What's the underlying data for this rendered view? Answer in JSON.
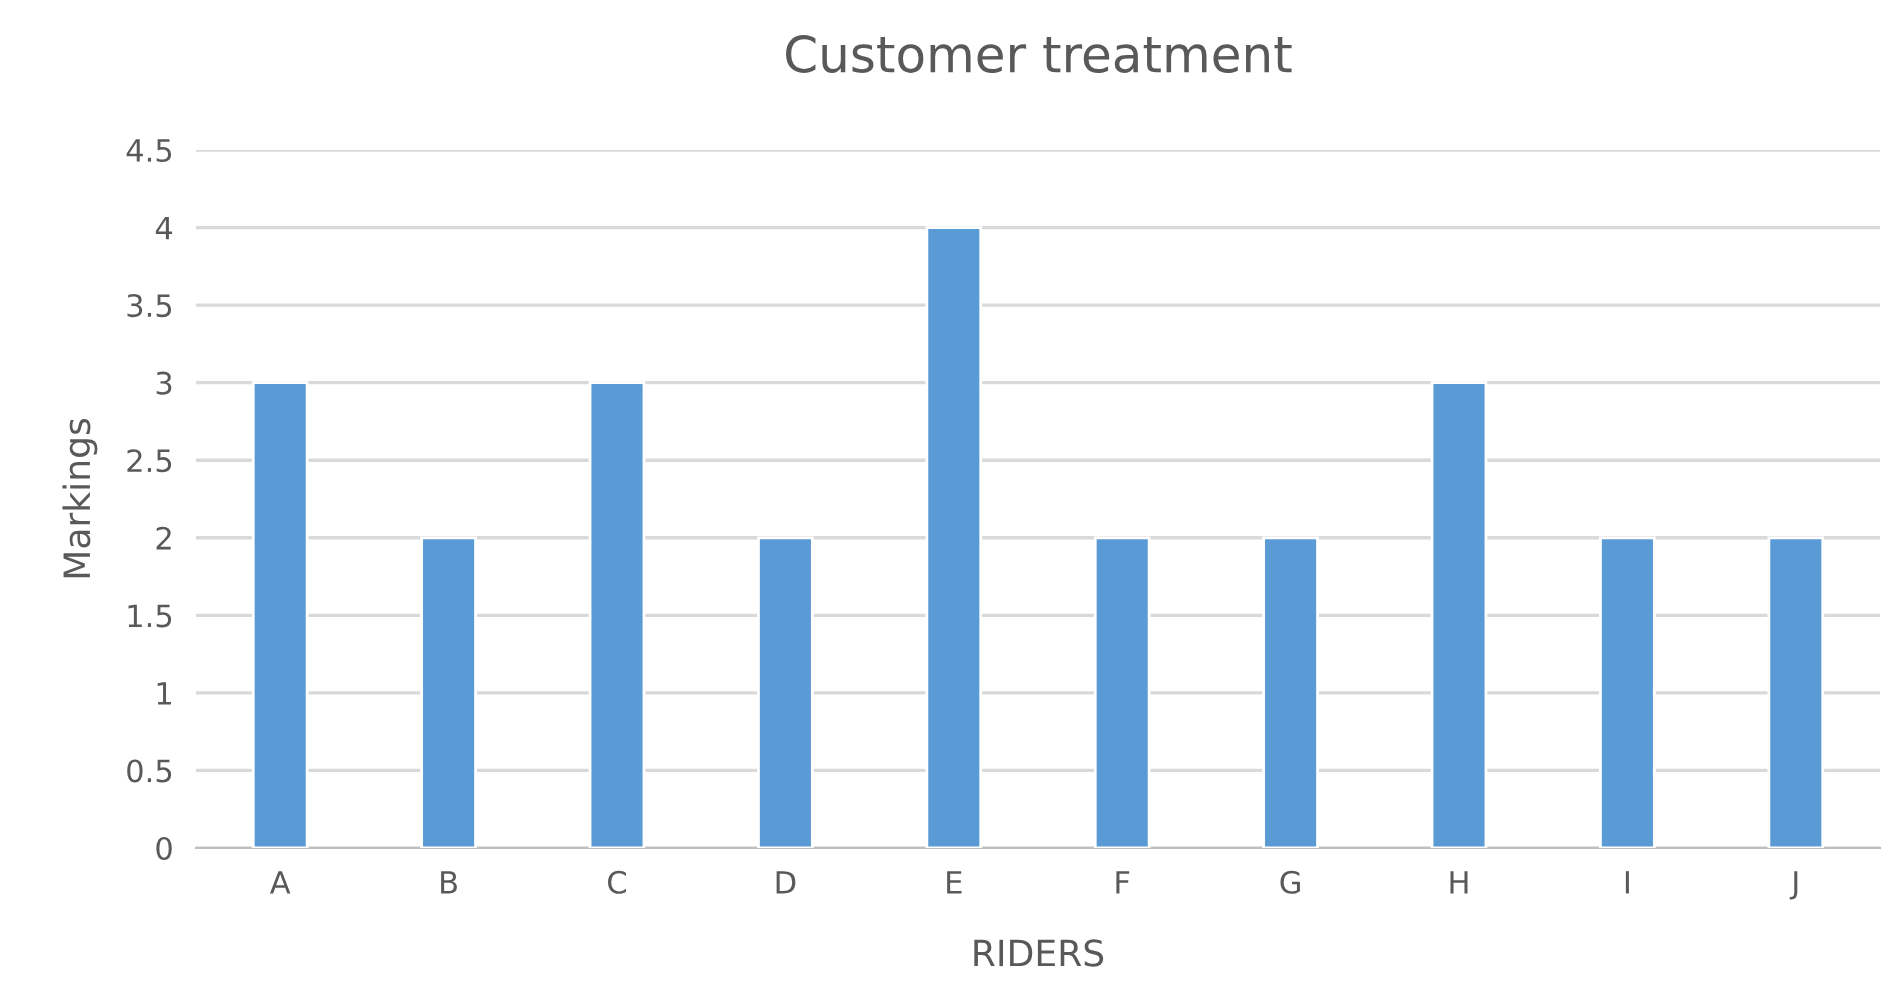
{
  "chart_data": {
    "type": "bar",
    "title": "Customer treatment",
    "xlabel": "RIDERS",
    "ylabel": "Markings",
    "categories": [
      "A",
      "B",
      "C",
      "D",
      "E",
      "F",
      "G",
      "H",
      "I",
      "J"
    ],
    "values": [
      3,
      2,
      3,
      2,
      4,
      2,
      2,
      3,
      2,
      2
    ],
    "color": "#5b9bd5",
    "ylim": [
      0,
      4.5
    ],
    "yticks": [
      0,
      0.5,
      1,
      1.5,
      2,
      2.5,
      3,
      3.5,
      4,
      4.5
    ],
    "grid": "y",
    "legend": false
  }
}
